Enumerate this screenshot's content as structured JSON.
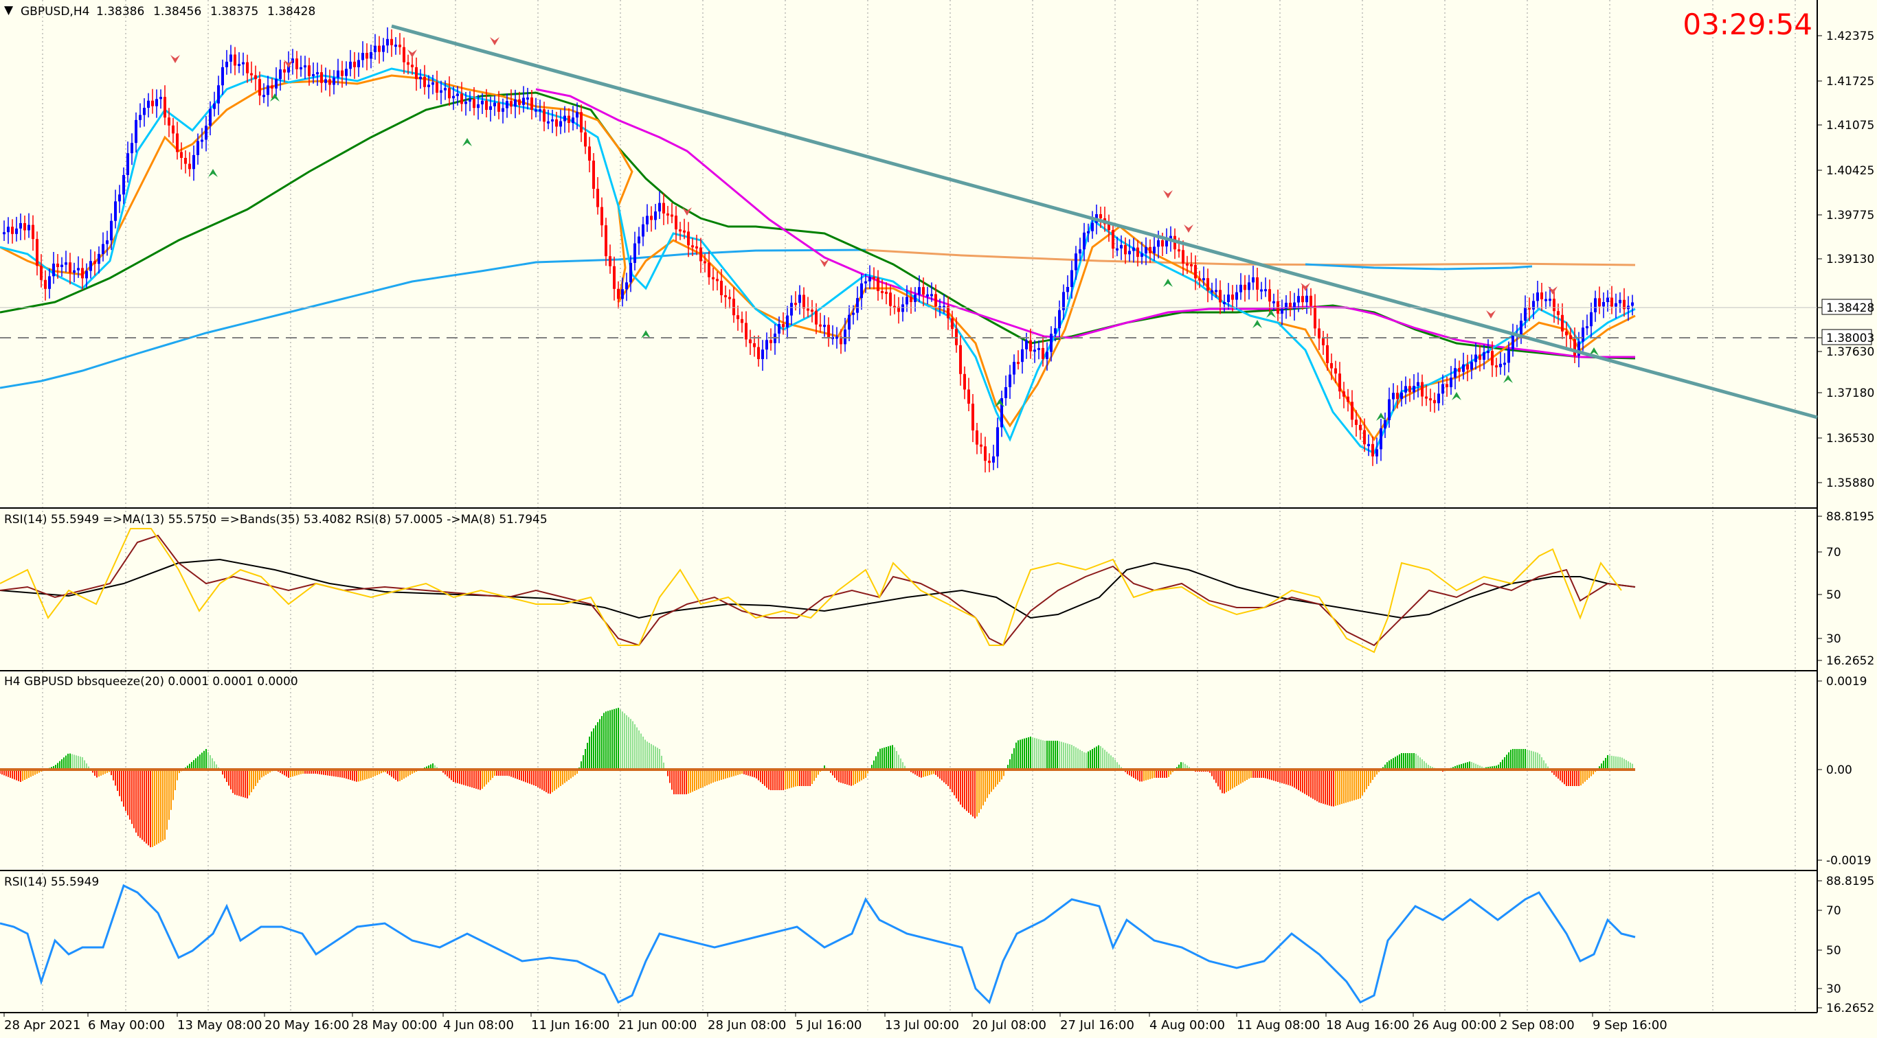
{
  "symbol_info": {
    "menu_icon": "triangle-down-icon",
    "symbol": "GBPUSD,H4",
    "open": "1.38386",
    "high": "1.38456",
    "low": "1.38375",
    "close": "1.38428"
  },
  "countdown": "03:29:54",
  "colors": {
    "background": "#fffff0",
    "bull_candle": "#0000ff",
    "bear_candle": "#ff0000",
    "fast_ma": "#00c8ff",
    "mid_ma": "#ff8c00",
    "magenta_ma": "#e400e4",
    "green_ma": "#008000",
    "long_ma_blue": "#1fa7f0",
    "long_ma_orange": "#f0a060",
    "trendline": "#5f9ea0",
    "countdown": "#ff0000",
    "hist_green": "#00b000",
    "hist_red": "#ff2000",
    "hist_orange": "#ff9900",
    "rsi_line": "#1e90ff",
    "rsi8_line": "#ffcc00",
    "ma_line": "#8b1a1a"
  },
  "main_chart": {
    "price_labels": [
      "1.42375",
      "1.41725",
      "1.41075",
      "1.40425",
      "1.39775",
      "1.39130",
      "1.38428",
      "1.38003",
      "1.37630",
      "1.37180",
      "1.36530",
      "1.35880"
    ],
    "current_price": "1.38428",
    "dashed_level": "1.38003"
  },
  "rsi_panel": {
    "label": "RSI(14) 55.5949  =>MA(13) 55.5750  =>Bands(35) 53.4082  RSI(8) 57.0005  ->MA(8) 51.7945",
    "scale": [
      "88.8195",
      "70",
      "50",
      "30",
      "16.2652"
    ]
  },
  "squeeze_panel": {
    "label": "H4 GBPUSD bbsqueeze(20) 0.0001 0.0001 0.0000",
    "scale": [
      "0.0019",
      "0.00",
      "-0.0019"
    ]
  },
  "rsi_panel2": {
    "label": "RSI(14) 55.5949",
    "scale": [
      "88.8195",
      "70",
      "50",
      "30",
      "16.2652"
    ]
  },
  "time_axis": [
    "28 Apr 2021",
    "6 May 00:00",
    "13 May 08:00",
    "20 May 16:00",
    "28 May 00:00",
    "4 Jun 08:00",
    "11 Jun 16:00",
    "21 Jun 00:00",
    "28 Jun 08:00",
    "5 Jul 16:00",
    "13 Jul 00:00",
    "20 Jul 08:00",
    "27 Jul 16:00",
    "4 Aug 00:00",
    "11 Aug 08:00",
    "18 Aug 16:00",
    "26 Aug 00:00",
    "2 Sep 08:00",
    "9 Sep 16:00"
  ]
}
